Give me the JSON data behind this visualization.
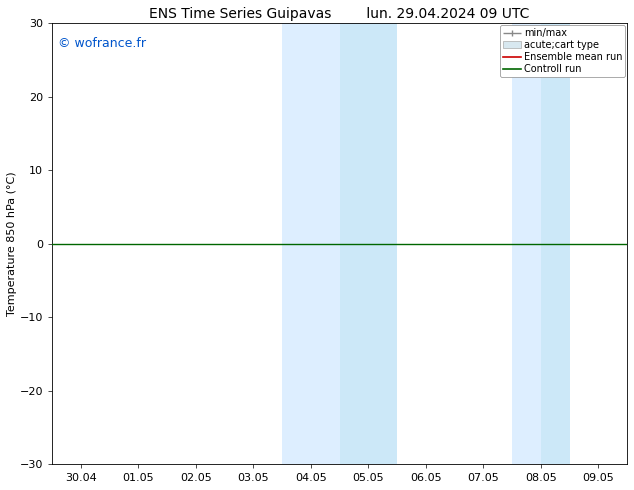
{
  "title_left": "ENS Time Series Guipavas",
  "title_right": "lun. 29.04.2024 09 UTC",
  "ylabel": "Temperature 850 hPa (°C)",
  "watermark": "© wofrance.fr",
  "watermark_color": "#0055cc",
  "ylim": [
    -30,
    30
  ],
  "yticks": [
    -30,
    -20,
    -10,
    0,
    10,
    20,
    30
  ],
  "x_labels": [
    "30.04",
    "01.05",
    "02.05",
    "03.05",
    "04.05",
    "05.05",
    "06.05",
    "07.05",
    "08.05",
    "09.05"
  ],
  "x_values": [
    0,
    1,
    2,
    3,
    4,
    5,
    6,
    7,
    8,
    9
  ],
  "shaded_regions": [
    {
      "xmin": 3.5,
      "xmax": 4.0,
      "color": "#ddeeff"
    },
    {
      "xmin": 4.0,
      "xmax": 4.5,
      "color": "#ddeeff"
    },
    {
      "xmin": 4.5,
      "xmax": 5.5,
      "color": "#cce8f8"
    },
    {
      "xmin": 7.5,
      "xmax": 8.0,
      "color": "#ddeeff"
    },
    {
      "xmin": 8.0,
      "xmax": 8.5,
      "color": "#cce8f8"
    }
  ],
  "hline_y": 0,
  "hline_color": "#006600",
  "hline_lw": 1.0,
  "legend_labels": [
    "min/max",
    "acute;cart type",
    "Ensemble mean run",
    "Controll run"
  ],
  "bg_color": "#ffffff",
  "plot_bg_color": "#ffffff",
  "spine_color": "#000000",
  "tick_color": "#000000",
  "font_size": 8,
  "title_font_size": 10
}
